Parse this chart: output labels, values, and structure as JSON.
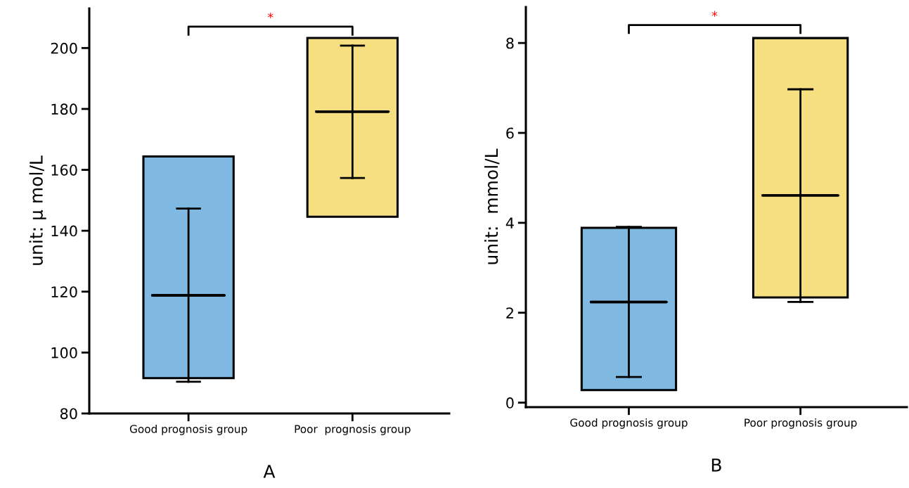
{
  "chart_data": [
    {
      "type": "bar",
      "ylabel": "unit: μ mol/L",
      "xlabel": "A",
      "categories": [
        "Good prognosis group",
        "Poor  prognosis group"
      ],
      "ylim": [
        80,
        213
      ],
      "yticks": [
        80,
        100,
        120,
        140,
        160,
        180,
        200
      ],
      "annotations": [
        "*"
      ],
      "base": [
        91.6,
        144.6
      ],
      "values": [
        72.8,
        58.7
      ],
      "colors": [
        "#7fb8e0",
        "#f5df80"
      ],
      "series": [
        {
          "type": "box",
          "color": "#000000",
          "boxes": [
            {
              "low": 90.4,
              "q1": 118.8,
              "median": 118.8,
              "q3": 118.8,
              "high": 147.3
            },
            {
              "low": 157.3,
              "q1": 179.1,
              "median": 179.1,
              "q3": 179.1,
              "high": 200.8
            }
          ]
        }
      ]
    },
    {
      "type": "bar",
      "ylabel": "unit:  mmol/L",
      "xlabel": "B",
      "categories": [
        "Good prognosis group",
        "Poor prognosis group"
      ],
      "ylim": [
        -0.1,
        8.8
      ],
      "yticks": [
        0,
        2,
        4,
        6,
        8
      ],
      "annotations": [
        "*"
      ],
      "base": [
        0.28,
        2.34
      ],
      "values": [
        3.61,
        5.77
      ],
      "colors": [
        "#7fb8e0",
        "#f5df80"
      ],
      "series": [
        {
          "type": "box",
          "color": "#000000",
          "boxes": [
            {
              "low": 0.57,
              "q1": 2.24,
              "median": 2.24,
              "q3": 2.24,
              "high": 3.91
            },
            {
              "low": 2.24,
              "q1": 4.61,
              "median": 4.61,
              "q3": 4.61,
              "high": 6.97
            }
          ]
        }
      ]
    }
  ]
}
